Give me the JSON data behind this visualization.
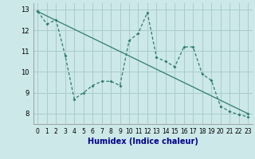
{
  "title": "",
  "xlabel": "Humidex (Indice chaleur)",
  "ylabel": "",
  "bg_color": "#cce8e8",
  "grid_color": "#aacccc",
  "line_color": "#2e7d6e",
  "xlim": [
    -0.5,
    23.5
  ],
  "ylim": [
    7.5,
    13.3
  ],
  "xticks": [
    0,
    1,
    2,
    3,
    4,
    5,
    6,
    7,
    8,
    9,
    10,
    11,
    12,
    13,
    14,
    15,
    16,
    17,
    18,
    19,
    20,
    21,
    22,
    23
  ],
  "yticks": [
    8,
    9,
    10,
    11,
    12,
    13
  ],
  "zigzag_x": [
    0,
    1,
    2,
    3,
    4,
    5,
    6,
    7,
    8,
    9,
    10,
    11,
    12,
    13,
    14,
    15,
    16,
    17,
    18,
    19,
    20,
    21,
    22,
    23
  ],
  "zigzag_y": [
    12.9,
    12.3,
    12.5,
    10.8,
    8.7,
    9.0,
    9.35,
    9.55,
    9.55,
    9.35,
    11.5,
    11.85,
    12.85,
    10.7,
    10.5,
    10.25,
    11.2,
    11.2,
    9.9,
    9.6,
    8.35,
    8.1,
    7.95,
    7.85
  ],
  "trend_x": [
    0,
    23
  ],
  "trend_y": [
    12.9,
    8.0
  ],
  "xlabel_color": "#00008b",
  "xlabel_fontsize": 7,
  "tick_fontsize": 5.5,
  "ytick_fontsize": 6
}
